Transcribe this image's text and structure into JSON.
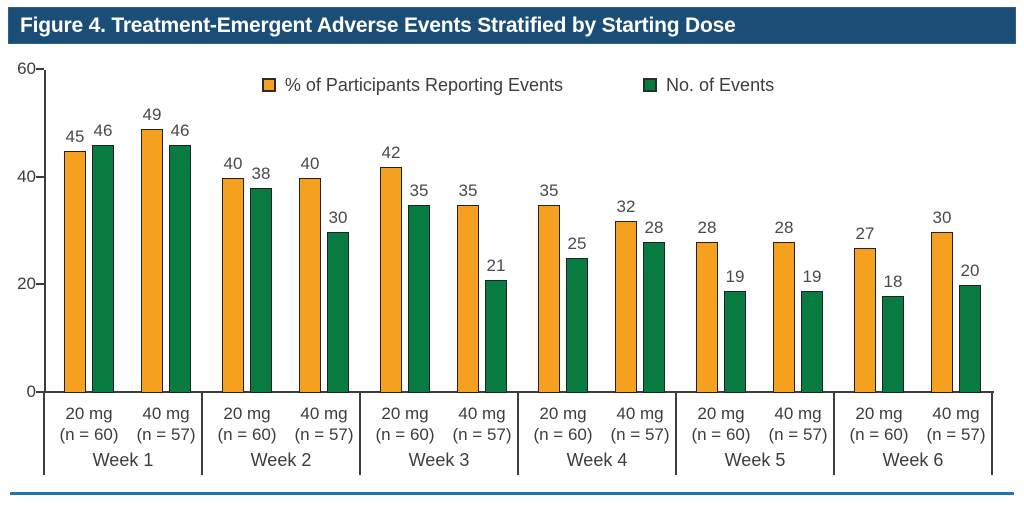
{
  "title": "Figure 4. Treatment-Emergent Adverse Events Stratified by Starting Dose",
  "colors": {
    "title_bar": "#1B4E77",
    "title_text": "#FFFFFF",
    "axis": "#3C3C3C",
    "text": "#3D3D3D",
    "bar_outline": "#222222",
    "orange": "#F5A01E",
    "green": "#087C40",
    "bottom_rule": "#2072AE"
  },
  "chart_data": {
    "type": "bar",
    "title": "Figure 4. Treatment-Emergent Adverse Events Stratified by Starting Dose",
    "xlabel": "",
    "ylabel": "",
    "ylim": [
      0,
      60
    ],
    "yticks": [
      0,
      20,
      40,
      60
    ],
    "grid": false,
    "legend_position": "top-center",
    "weeks": [
      "Week 1",
      "Week 2",
      "Week 3",
      "Week 4",
      "Week 5",
      "Week 6"
    ],
    "dose_labels": [
      {
        "line1": "20 mg",
        "line2": "(n = 60)"
      },
      {
        "line1": "40 mg",
        "line2": "(n = 57)"
      }
    ],
    "series": [
      {
        "name": "% of Participants Reporting Events",
        "color": "#F5A01E",
        "values": [
          [
            45,
            49
          ],
          [
            40,
            40
          ],
          [
            42,
            35
          ],
          [
            35,
            32
          ],
          [
            28,
            28
          ],
          [
            27,
            30
          ]
        ]
      },
      {
        "name": "No. of Events",
        "color": "#087C40",
        "values": [
          [
            46,
            46
          ],
          [
            38,
            30
          ],
          [
            35,
            21
          ],
          [
            25,
            28
          ],
          [
            19,
            19
          ],
          [
            18,
            20
          ]
        ]
      }
    ]
  }
}
